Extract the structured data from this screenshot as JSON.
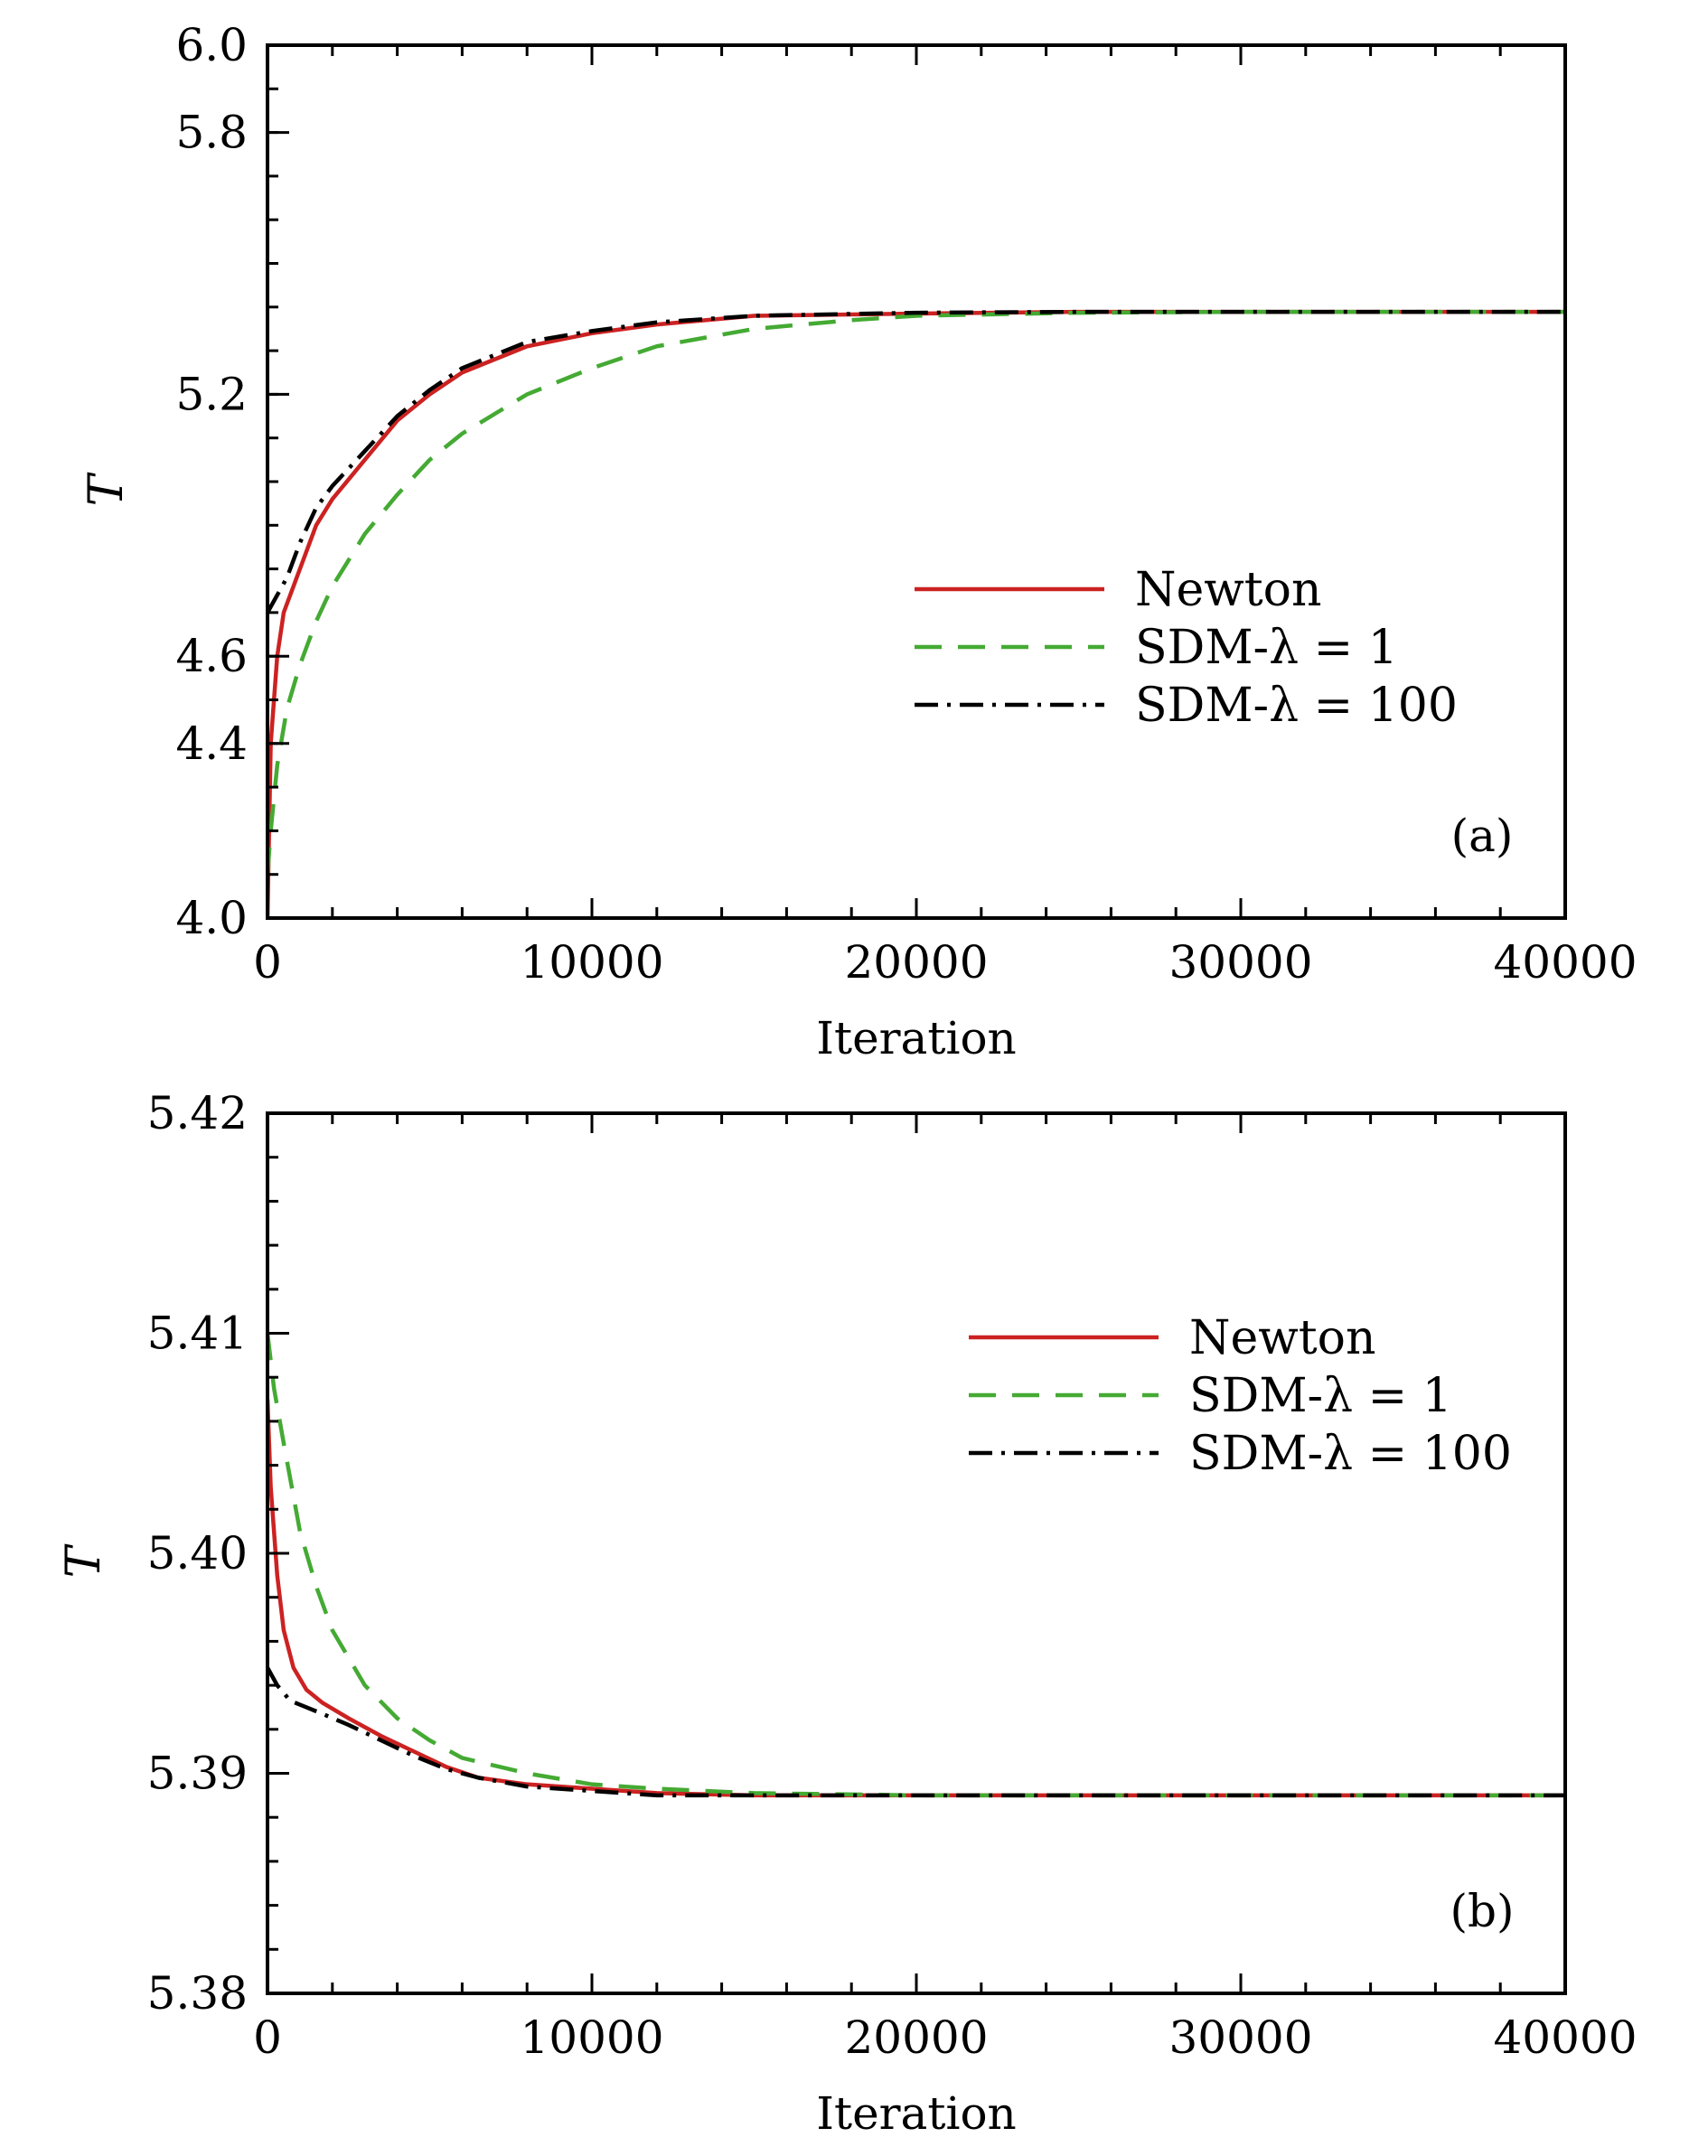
{
  "chart_data": [
    {
      "type": "line",
      "panel_label": "(a)",
      "xlabel": "Iteration",
      "ylabel": "T",
      "xlim": [
        0,
        40000
      ],
      "ylim": [
        4.0,
        6.0
      ],
      "x_ticks": [
        0,
        10000,
        20000,
        30000,
        40000
      ],
      "x_tick_labels": [
        "0",
        "10000",
        "20000",
        "30000",
        "40000"
      ],
      "y_ticks": [
        4.0,
        4.4,
        4.6,
        5.2,
        5.8,
        6.0
      ],
      "y_tick_labels": [
        "4.0",
        "4.4",
        "4.6",
        "5.2",
        "5.8",
        "6.0"
      ],
      "legend_position": "center-right",
      "series": [
        {
          "name": "Newton",
          "color": "#cc2222",
          "style": "solid",
          "x": [
            0,
            100,
            300,
            500,
            1000,
            1500,
            2000,
            3000,
            4000,
            5000,
            6000,
            7000,
            8000,
            10000,
            12000,
            15000,
            20000,
            25000,
            30000,
            35000,
            40000
          ],
          "y": [
            4.0,
            4.4,
            4.6,
            4.7,
            4.8,
            4.9,
            4.96,
            5.05,
            5.14,
            5.2,
            5.25,
            5.28,
            5.31,
            5.34,
            5.36,
            5.38,
            5.385,
            5.389,
            5.389,
            5.389,
            5.389
          ]
        },
        {
          "name": "SDM-λ = 1",
          "color": "#44aa33",
          "style": "dashed",
          "x": [
            0,
            100,
            300,
            600,
            1000,
            1500,
            2000,
            3000,
            4000,
            5000,
            6000,
            8000,
            10000,
            12000,
            15000,
            18000,
            20000,
            25000,
            30000,
            35000,
            40000
          ],
          "y": [
            4.1,
            4.2,
            4.35,
            4.48,
            4.58,
            4.68,
            4.76,
            4.88,
            4.97,
            5.05,
            5.11,
            5.2,
            5.26,
            5.31,
            5.35,
            5.37,
            5.38,
            5.387,
            5.389,
            5.389,
            5.389
          ]
        },
        {
          "name": "SDM-λ = 100",
          "color": "#000000",
          "style": "dashdot",
          "x": [
            0,
            300,
            600,
            1000,
            1500,
            2000,
            3000,
            4000,
            5000,
            6000,
            7000,
            8000,
            10000,
            12000,
            15000,
            20000,
            25000,
            30000,
            35000,
            40000
          ],
          "y": [
            4.7,
            4.74,
            4.78,
            4.86,
            4.94,
            4.99,
            5.07,
            5.15,
            5.21,
            5.26,
            5.29,
            5.32,
            5.345,
            5.365,
            5.38,
            5.387,
            5.389,
            5.389,
            5.389,
            5.389
          ]
        }
      ]
    },
    {
      "type": "line",
      "panel_label": "(b)",
      "xlabel": "Iteration",
      "ylabel": "T",
      "xlim": [
        0,
        40000
      ],
      "ylim": [
        5.38,
        5.42
      ],
      "x_ticks": [
        0,
        10000,
        20000,
        30000,
        40000
      ],
      "x_tick_labels": [
        "0",
        "10000",
        "20000",
        "30000",
        "40000"
      ],
      "y_ticks": [
        5.38,
        5.39,
        5.4,
        5.41,
        5.42
      ],
      "y_tick_labels": [
        "5.38",
        "5.39",
        "5.40",
        "5.41",
        "5.42"
      ],
      "legend_position": "top-right",
      "series": [
        {
          "name": "Newton",
          "color": "#cc2222",
          "style": "solid",
          "x": [
            0,
            100,
            300,
            500,
            800,
            1200,
            1700,
            2500,
            3500,
            4500,
            5500,
            6500,
            8000,
            10000,
            12000,
            15000,
            20000,
            30000,
            40000
          ],
          "y": [
            5.407,
            5.403,
            5.399,
            5.3965,
            5.3948,
            5.3938,
            5.3932,
            5.3925,
            5.3917,
            5.391,
            5.3903,
            5.3898,
            5.3895,
            5.3893,
            5.3891,
            5.389,
            5.389,
            5.389,
            5.389
          ]
        },
        {
          "name": "SDM-λ = 1",
          "color": "#44aa33",
          "style": "dashed",
          "x": [
            0,
            200,
            500,
            1000,
            1500,
            2000,
            3000,
            4000,
            5000,
            6000,
            8000,
            10000,
            12000,
            15000,
            20000,
            25000,
            30000,
            40000
          ],
          "y": [
            5.41,
            5.4075,
            5.405,
            5.401,
            5.3985,
            5.3965,
            5.394,
            5.3925,
            5.3915,
            5.3907,
            5.39,
            5.3895,
            5.3893,
            5.3891,
            5.389,
            5.389,
            5.389,
            5.389
          ]
        },
        {
          "name": "SDM-λ = 100",
          "color": "#000000",
          "style": "dashdot",
          "x": [
            0,
            300,
            700,
            1200,
            1700,
            2500,
            3500,
            4500,
            5500,
            6500,
            8000,
            10000,
            12000,
            15000,
            20000,
            30000,
            40000
          ],
          "y": [
            5.3948,
            5.394,
            5.3933,
            5.393,
            5.3927,
            5.3922,
            5.3915,
            5.3908,
            5.3902,
            5.3898,
            5.3894,
            5.3892,
            5.389,
            5.389,
            5.389,
            5.389,
            5.389
          ]
        }
      ]
    }
  ]
}
